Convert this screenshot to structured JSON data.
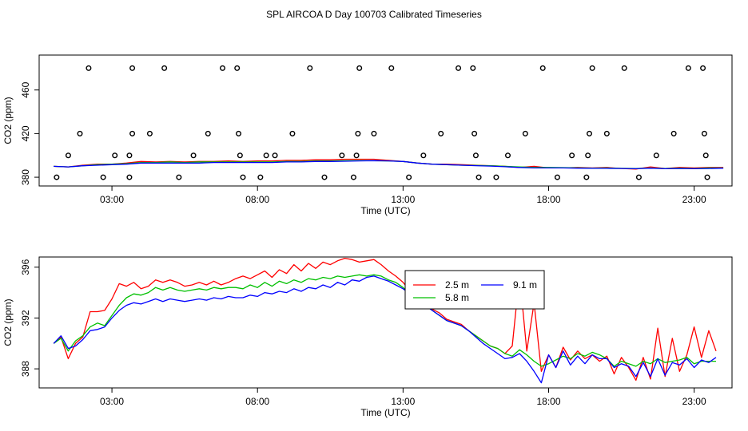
{
  "title": "SPL AIRCOA D  Day 100703  Calibrated Timeseries",
  "colors": {
    "r2_5": "#ff0000",
    "r5_8": "#00c000",
    "r9_1": "#0000ff",
    "text": "#000000"
  },
  "chart_data": [
    {
      "type": "line",
      "xlabel": "Time (UTC)",
      "ylabel": "CO2 (ppm)",
      "xlim": [
        0.5,
        24.3
      ],
      "ylim": [
        372,
        492
      ],
      "x_ticks": [
        "03:00",
        "08:00",
        "13:00",
        "18:00",
        "23:00"
      ],
      "x_tick_values": [
        3,
        8,
        13,
        18,
        23
      ],
      "y_ticks": [
        "380",
        "420",
        "460"
      ],
      "y_tick_values": [
        380,
        420,
        460
      ],
      "x_hours": [
        1,
        1.5,
        2,
        2.5,
        3,
        3.5,
        4,
        4.5,
        5,
        5.5,
        6,
        6.5,
        7,
        7.5,
        8,
        8.5,
        9,
        9.5,
        10,
        10.5,
        11,
        11.5,
        12,
        12.5,
        13,
        13.5,
        14,
        14.5,
        15,
        15.5,
        16,
        16.5,
        17,
        17.5,
        18,
        18.5,
        19,
        19.5,
        20,
        20.5,
        21,
        21.5,
        22,
        22.5,
        23,
        23.5,
        24
      ],
      "series": [
        {
          "values": [
            390,
            389.5,
            391,
            392,
            392,
            393,
            394.5,
            394,
            394.5,
            394,
            394.5,
            394.5,
            395,
            394.5,
            395,
            395,
            395.5,
            395.5,
            396,
            396,
            396.5,
            396.5,
            396.5,
            395.5,
            394.5,
            393,
            392,
            392,
            391.5,
            391,
            390.5,
            390,
            389,
            390,
            388.5,
            388.5,
            389,
            388.5,
            389,
            388,
            387.5,
            389.5,
            388,
            389,
            388.5,
            389,
            389
          ]
        },
        {
          "values": [
            390,
            389.5,
            390.5,
            391.5,
            392,
            392.5,
            393.5,
            393.5,
            394,
            393.5,
            394,
            394,
            394,
            394,
            394,
            394,
            394.5,
            394.5,
            395,
            395,
            395.2,
            395.3,
            395.2,
            395,
            394.5,
            393,
            392,
            391.5,
            391,
            390.8,
            390.5,
            390,
            389.5,
            389,
            389,
            388.8,
            388.6,
            388.4,
            388.5,
            388.2,
            388,
            388.5,
            388,
            388.3,
            388,
            388.5,
            388.5
          ]
        },
        {
          "values": [
            390,
            389.5,
            390.5,
            391,
            391.5,
            392,
            393,
            393,
            393,
            393,
            393,
            393.5,
            393.5,
            393.5,
            393.5,
            393.5,
            394,
            394,
            394.5,
            394.5,
            394.7,
            395,
            395.2,
            395,
            394.5,
            393,
            392,
            391.5,
            391,
            390.6,
            390.2,
            389.6,
            389,
            388.5,
            388.5,
            388.5,
            388.3,
            388.2,
            388.2,
            388,
            387.8,
            388.3,
            387.8,
            388,
            387.8,
            388,
            388.3
          ]
        }
      ],
      "flag_levels": [
        380,
        400,
        420,
        480
      ],
      "flags": [
        [
          1.1,
          380
        ],
        [
          1.5,
          400
        ],
        [
          1.9,
          420
        ],
        [
          2.2,
          480
        ],
        [
          2.7,
          380
        ],
        [
          3.1,
          400
        ],
        [
          3.6,
          380
        ],
        [
          3.6,
          400
        ],
        [
          3.7,
          420
        ],
        [
          3.7,
          480
        ],
        [
          4.3,
          420
        ],
        [
          4.8,
          480
        ],
        [
          5.3,
          380
        ],
        [
          5.8,
          400
        ],
        [
          6.3,
          420
        ],
        [
          6.8,
          480
        ],
        [
          7.3,
          480
        ],
        [
          7.35,
          420
        ],
        [
          7.4,
          400
        ],
        [
          7.5,
          380
        ],
        [
          8.1,
          380
        ],
        [
          8.3,
          400
        ],
        [
          8.6,
          400
        ],
        [
          9.2,
          420
        ],
        [
          9.8,
          480
        ],
        [
          10.3,
          380
        ],
        [
          10.9,
          400
        ],
        [
          11.3,
          380
        ],
        [
          11.4,
          400
        ],
        [
          11.45,
          420
        ],
        [
          11.5,
          480
        ],
        [
          12,
          420
        ],
        [
          12.6,
          480
        ],
        [
          13.2,
          380
        ],
        [
          13.7,
          400
        ],
        [
          14.3,
          420
        ],
        [
          14.9,
          480
        ],
        [
          15.4,
          480
        ],
        [
          15.45,
          420
        ],
        [
          15.5,
          400
        ],
        [
          15.6,
          380
        ],
        [
          16.2,
          380
        ],
        [
          16.6,
          400
        ],
        [
          17.2,
          420
        ],
        [
          17.8,
          480
        ],
        [
          18.3,
          380
        ],
        [
          18.8,
          400
        ],
        [
          19.3,
          380
        ],
        [
          19.35,
          400
        ],
        [
          19.4,
          420
        ],
        [
          19.5,
          480
        ],
        [
          20,
          420
        ],
        [
          20.6,
          480
        ],
        [
          21.1,
          380
        ],
        [
          21.7,
          400
        ],
        [
          22.3,
          420
        ],
        [
          22.8,
          480
        ],
        [
          23.3,
          480
        ],
        [
          23.35,
          420
        ],
        [
          23.4,
          400
        ],
        [
          23.45,
          380
        ]
      ]
    },
    {
      "type": "line",
      "xlabel": "Time (UTC)",
      "ylabel": "CO2 (ppm)",
      "xlim": [
        0.5,
        24.3
      ],
      "ylim": [
        386.5,
        396.8
      ],
      "x_ticks": [
        "03:00",
        "08:00",
        "13:00",
        "18:00",
        "23:00"
      ],
      "x_tick_values": [
        3,
        8,
        13,
        18,
        23
      ],
      "y_ticks": [
        "388",
        "392",
        "396"
      ],
      "y_tick_values": [
        388,
        392,
        396
      ],
      "x_hours": [
        1,
        1.25,
        1.5,
        1.75,
        2,
        2.25,
        2.5,
        2.75,
        3,
        3.25,
        3.5,
        3.75,
        4,
        4.25,
        4.5,
        4.75,
        5,
        5.25,
        5.5,
        5.75,
        6,
        6.25,
        6.5,
        6.75,
        7,
        7.25,
        7.5,
        7.75,
        8,
        8.25,
        8.5,
        8.75,
        9,
        9.25,
        9.5,
        9.75,
        10,
        10.25,
        10.5,
        10.75,
        11,
        11.25,
        11.5,
        11.75,
        12,
        12.25,
        12.5,
        12.75,
        13,
        13.25,
        13.5,
        13.75,
        14,
        14.25,
        14.5,
        14.75,
        15,
        15.25,
        15.5,
        15.75,
        16,
        16.25,
        16.5,
        16.75,
        17,
        17.25,
        17.5,
        17.75,
        18,
        18.25,
        18.5,
        18.75,
        19,
        19.25,
        19.5,
        19.75,
        20,
        20.25,
        20.5,
        20.75,
        21,
        21.25,
        21.5,
        21.75,
        22,
        22.25,
        22.5,
        22.75,
        23,
        23.25,
        23.5,
        23.75
      ],
      "series": [
        {
          "name": "2.5 m",
          "values": [
            390,
            390.5,
            388.8,
            390,
            390.5,
            392.5,
            392.5,
            392.6,
            393.5,
            394.7,
            394.5,
            394.8,
            394.3,
            394.5,
            395,
            394.8,
            395,
            394.8,
            394.5,
            394.6,
            394.8,
            394.6,
            394.9,
            394.6,
            394.8,
            395.1,
            395.3,
            395.1,
            395.4,
            395.7,
            395.2,
            395.8,
            395.5,
            396.2,
            395.7,
            396.3,
            395.9,
            396.4,
            396.2,
            396.5,
            396.7,
            396.6,
            396.4,
            396.5,
            396.6,
            396.2,
            395.7,
            395.3,
            394.8,
            394.1,
            393.6,
            393.3,
            392.7,
            392.4,
            391.9,
            391.7,
            391.5,
            391,
            390.6,
            390.2,
            389.8,
            389.6,
            389.2,
            389.8,
            395.4,
            389.4,
            393.2,
            387.8,
            389.1,
            388.1,
            389.7,
            388.7,
            389.4,
            388.8,
            389.1,
            388.6,
            389,
            387.6,
            388.9,
            388.1,
            387.1,
            388.9,
            387.2,
            391.2,
            387.4,
            390.4,
            387.8,
            389.1,
            391.3,
            388.9,
            391,
            389.4
          ]
        },
        {
          "name": "5.8 m",
          "values": [
            390,
            390.4,
            389.4,
            390.2,
            390.6,
            391.3,
            391.6,
            391.4,
            392.2,
            393,
            393.6,
            393.9,
            393.8,
            394,
            394.4,
            394.2,
            394.4,
            394.2,
            394.1,
            394.2,
            394.3,
            394.2,
            394.4,
            394.3,
            394.4,
            394.4,
            394.3,
            394.6,
            394.4,
            394.8,
            394.5,
            394.9,
            394.7,
            395,
            394.8,
            395.1,
            395,
            395.2,
            395.1,
            395.3,
            395.2,
            395.3,
            395.4,
            395.3,
            395.4,
            395.3,
            395,
            394.8,
            394.4,
            393.9,
            393.5,
            393,
            392.6,
            392.2,
            391.8,
            391.6,
            391.4,
            391,
            390.6,
            390.2,
            389.8,
            389.6,
            389.2,
            389,
            389.5,
            389.1,
            388.6,
            388.2,
            388.4,
            388.7,
            389,
            388.8,
            389.2,
            389,
            389.3,
            389.1,
            388.8,
            388.2,
            388.6,
            388.4,
            388.2,
            388.6,
            388.4,
            388.8,
            388.5,
            388.6,
            388.7,
            388.9,
            388.4,
            388.6,
            388.6,
            388.6
          ]
        },
        {
          "name": "9.1 m",
          "values": [
            390,
            390.6,
            389.6,
            389.8,
            390.3,
            391,
            391.1,
            391.3,
            392,
            392.6,
            393,
            393.2,
            393.1,
            393.3,
            393.5,
            393.3,
            393.5,
            393.4,
            393.3,
            393.4,
            393.5,
            393.4,
            393.6,
            393.5,
            393.7,
            393.6,
            393.6,
            393.8,
            393.7,
            394,
            393.9,
            394.1,
            394,
            394.3,
            394.1,
            394.4,
            394.3,
            394.6,
            394.4,
            394.8,
            394.6,
            395,
            394.9,
            395.2,
            395.3,
            395.1,
            394.9,
            394.6,
            394.3,
            393.9,
            393.4,
            393,
            392.6,
            392.2,
            391.8,
            391.6,
            391.4,
            391,
            390.5,
            390,
            389.6,
            389.2,
            388.8,
            388.9,
            389.2,
            388.6,
            387.8,
            386.9,
            389.1,
            388.1,
            389.4,
            388.3,
            389,
            388.4,
            389.1,
            388.8,
            388.8,
            388.1,
            388.4,
            388.2,
            387.4,
            388.5,
            387.4,
            388.8,
            387.5,
            388.5,
            388.3,
            388.8,
            388.1,
            388.7,
            388.5,
            388.9
          ]
        }
      ]
    }
  ]
}
